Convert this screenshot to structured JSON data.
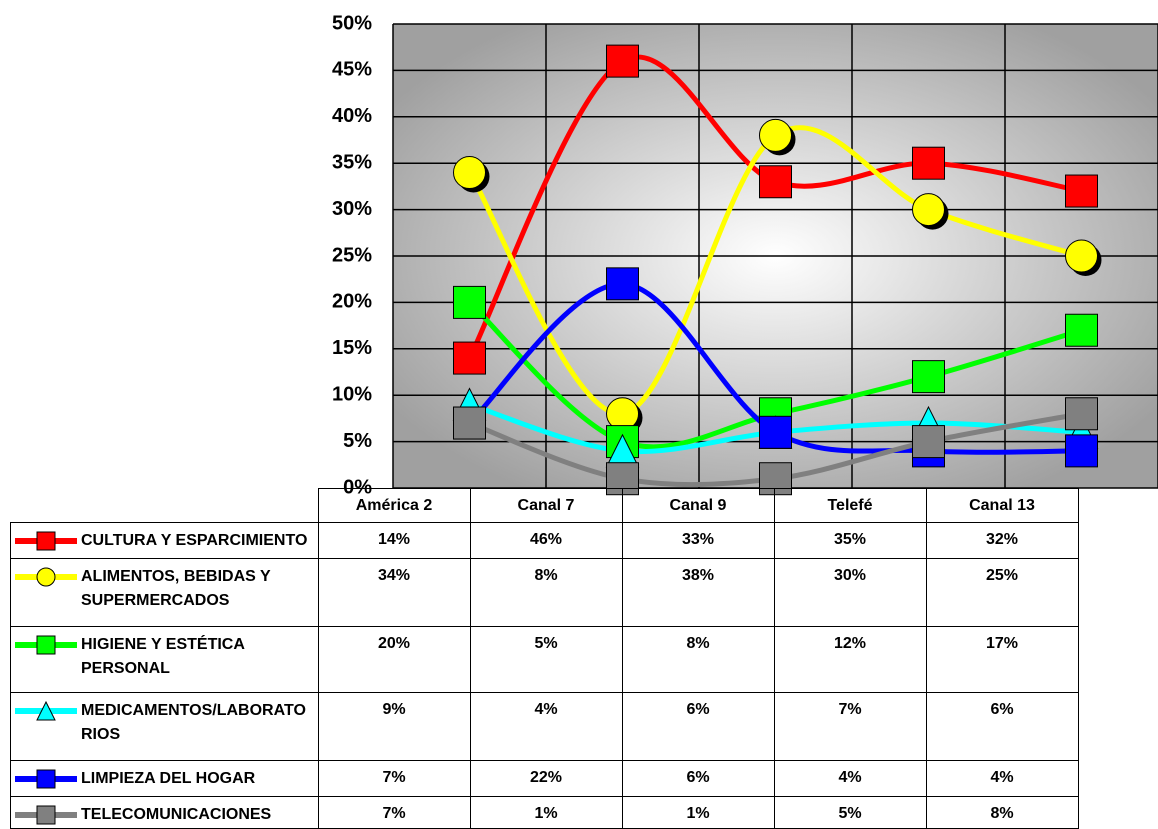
{
  "chart_data": {
    "type": "line",
    "categories": [
      "América 2",
      "Canal 7",
      "Canal 9",
      "Telefé",
      "Canal 13"
    ],
    "ylim": [
      0,
      50
    ],
    "yticks": [
      {
        "value": 0,
        "label": "0%"
      },
      {
        "value": 5,
        "label": "5%"
      },
      {
        "value": 10,
        "label": "10%"
      },
      {
        "value": 15,
        "label": "15%"
      },
      {
        "value": 20,
        "label": "20%"
      },
      {
        "value": 25,
        "label": "25%"
      },
      {
        "value": 30,
        "label": "30%"
      },
      {
        "value": 35,
        "label": "35%"
      },
      {
        "value": 40,
        "label": "40%"
      },
      {
        "value": 45,
        "label": "45%"
      },
      {
        "value": 50,
        "label": "50%"
      }
    ],
    "grid": true,
    "series": [
      {
        "name": "CULTURA Y ESPARCIMIENTO",
        "color": "#ff0000",
        "marker": "square",
        "values": [
          14,
          46,
          33,
          35,
          32
        ],
        "value_labels": [
          "14%",
          "46%",
          "33%",
          "35%",
          "32%"
        ]
      },
      {
        "name": "ALIMENTOS, BEBIDAS Y SUPERMERCADOS",
        "color": "#ffff00",
        "marker": "circle",
        "values": [
          34,
          8,
          38,
          30,
          25
        ],
        "value_labels": [
          "34%",
          "8%",
          "38%",
          "30%",
          "25%"
        ]
      },
      {
        "name": "HIGIENE Y ESTÉTICA PERSONAL",
        "color": "#00ff00",
        "marker": "square",
        "values": [
          20,
          5,
          8,
          12,
          17
        ],
        "value_labels": [
          "20%",
          "5%",
          "8%",
          "12%",
          "17%"
        ]
      },
      {
        "name": "MEDICAMENTOS/LABORATORIOS",
        "color": "#00ffff",
        "marker": "triangle",
        "values": [
          9,
          4,
          6,
          7,
          6
        ],
        "value_labels": [
          "9%",
          "4%",
          "6%",
          "7%",
          "6%"
        ]
      },
      {
        "name": "LIMPIEZA DEL HOGAR",
        "color": "#0000ff",
        "marker": "square",
        "values": [
          7,
          22,
          6,
          4,
          4
        ],
        "value_labels": [
          "7%",
          "22%",
          "6%",
          "4%",
          "4%"
        ]
      },
      {
        "name": "TELECOMUNICACIONES",
        "color": "#808080",
        "marker": "square",
        "values": [
          7,
          1,
          1,
          5,
          8
        ],
        "value_labels": [
          "7%",
          "1%",
          "1%",
          "5%",
          "8%"
        ]
      }
    ]
  }
}
